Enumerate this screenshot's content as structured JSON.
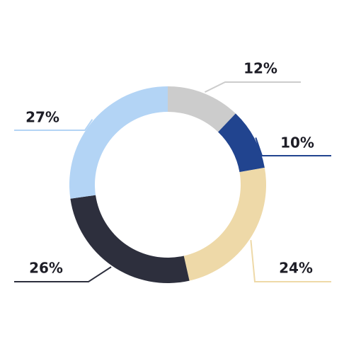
{
  "chart_data": {
    "type": "donut",
    "values": [
      12,
      10,
      24,
      26,
      27
    ],
    "value_labels": [
      "12%",
      "10%",
      "24%",
      "26%",
      "27%"
    ],
    "colors": [
      "#cccccc",
      "#21448f",
      "#eed9a8",
      "#2d2f3d",
      "#b3d4f5"
    ]
  }
}
